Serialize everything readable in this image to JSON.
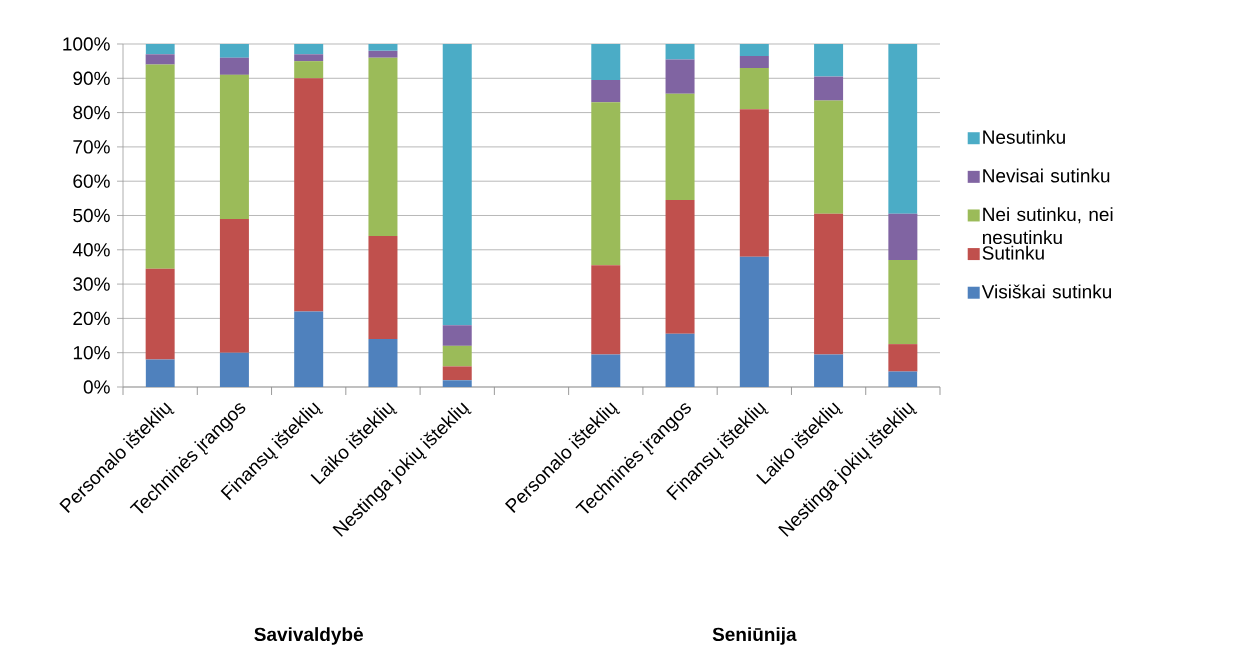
{
  "chart_data": {
    "type": "bar",
    "stacked": true,
    "grid": "y",
    "legend": "right",
    "categories": [
      "Personalo išteklių",
      "Techninės įrangos",
      "Finansų išteklių",
      "Laiko išteklių",
      "Nestinga jokių išteklių",
      null,
      "Personalo išteklių",
      "Techninės įrangos",
      "Finansų išteklių",
      "Laiko išteklių",
      "Nestinga jokių išteklių"
    ],
    "series": [
      {
        "name": "Visiškai sutinku",
        "color": "#4f81bd",
        "values": [
          8,
          10,
          22,
          14,
          2,
          null,
          9.5,
          15.5,
          38,
          9.5,
          4.5
        ]
      },
      {
        "name": "Sutinku",
        "color": "#c0504d",
        "values": [
          26.5,
          39,
          68,
          30,
          4,
          null,
          26,
          39,
          43,
          41,
          8
        ]
      },
      {
        "name": "Nei sutinku, nei nesutinku",
        "color": "#9bbb59",
        "values": [
          59.5,
          42,
          5,
          52,
          6,
          null,
          47.5,
          31,
          12,
          33,
          24.5
        ]
      },
      {
        "name": "Nevisai sutinku",
        "color": "#8064a2",
        "values": [
          3,
          5,
          2,
          2,
          6,
          null,
          6.5,
          10,
          3.5,
          7,
          13.5
        ]
      },
      {
        "name": "Nesutinku",
        "color": "#4bacc6",
        "values": [
          3,
          4,
          3,
          2,
          82,
          null,
          10.5,
          4.5,
          3.5,
          9.5,
          49.5
        ]
      }
    ],
    "ylim": [
      0,
      100
    ],
    "yticks": [
      {
        "value": 0,
        "label": "0%"
      },
      {
        "value": 10,
        "label": "10%"
      },
      {
        "value": 20,
        "label": "20%"
      },
      {
        "value": 30,
        "label": "30%"
      },
      {
        "value": 40,
        "label": "40%"
      },
      {
        "value": 50,
        "label": "50%"
      },
      {
        "value": 60,
        "label": "60%"
      },
      {
        "value": 70,
        "label": "70%"
      },
      {
        "value": 80,
        "label": "80%"
      },
      {
        "value": 90,
        "label": "90%"
      },
      {
        "value": 100,
        "label": "100%"
      }
    ],
    "annotations": [
      "Savivaldybė",
      "Seniūnija"
    ]
  }
}
